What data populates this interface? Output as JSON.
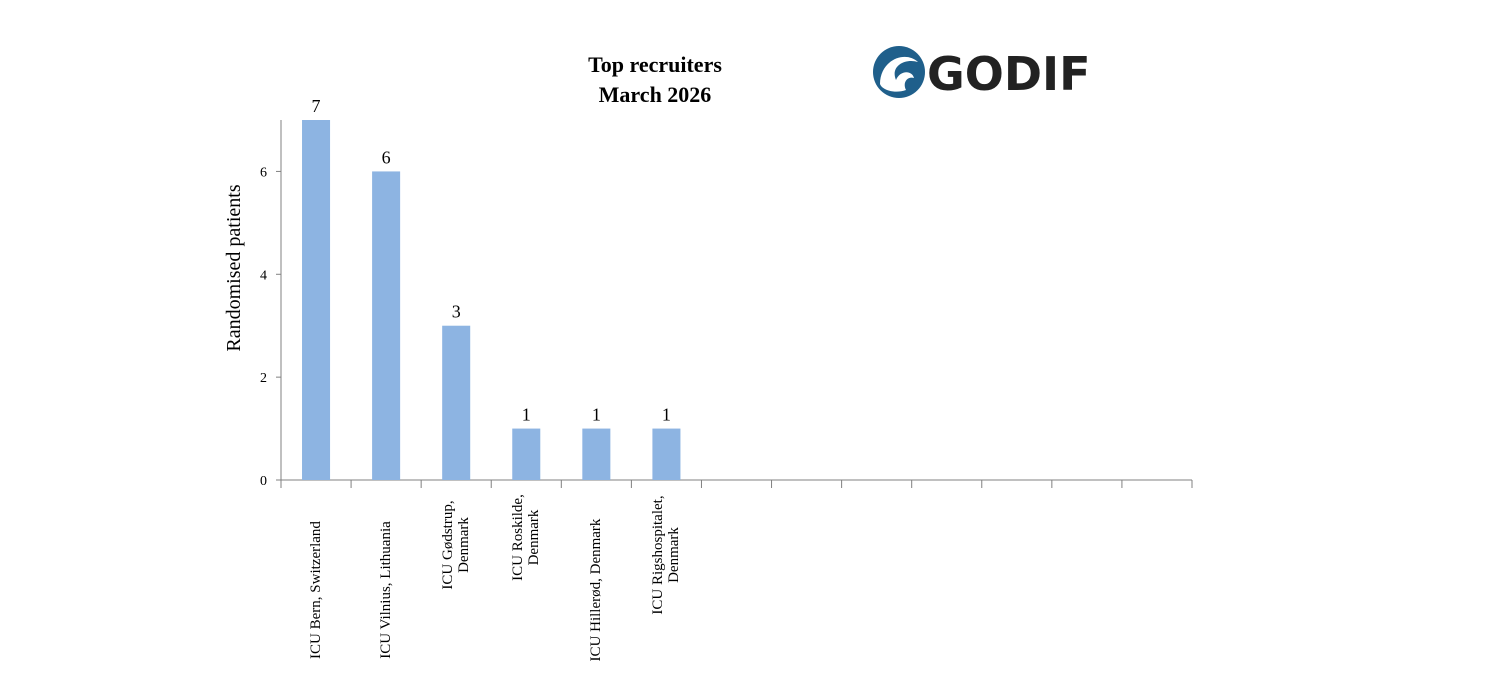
{
  "logo_text": "GODIF",
  "chart_data": {
    "type": "bar",
    "title": "Top recruiters",
    "subtitle": "March 2026",
    "y_label": "Randomised patients",
    "categories": [
      "ICU Bern, Switzerland",
      "ICU Vilnius, Lithuania",
      "ICU Gødstrup, Denmark",
      "ICU Roskilde, Denmark",
      "ICU Hillerød, Denmark",
      "ICU Rigshospitalet, Denmark",
      null,
      null,
      null,
      null,
      null,
      null,
      null
    ],
    "values": [
      7,
      6,
      3,
      1,
      1,
      1,
      null,
      null,
      null,
      null,
      null,
      null,
      null
    ],
    "color": "#8db4e2",
    "ylim": [
      0,
      7
    ],
    "yticks": [
      0,
      2,
      4,
      6
    ],
    "grid": false
  }
}
